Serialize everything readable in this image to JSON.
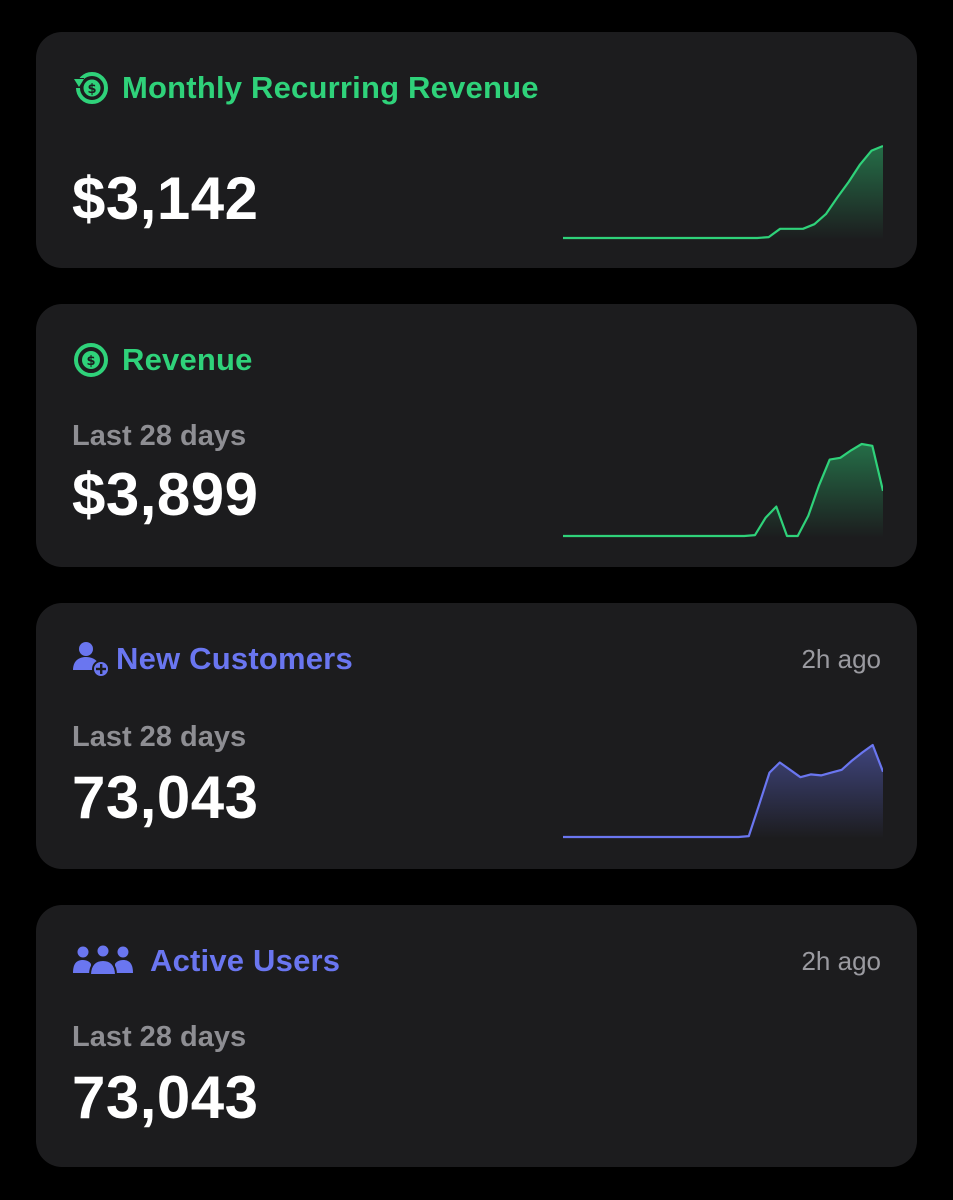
{
  "colors": {
    "background": "#000000",
    "card": "#1c1c1e",
    "green_accent": "#2fd27a",
    "blue_accent": "#6a76f0",
    "muted_text": "#8e8e93",
    "value_text": "#ffffff"
  },
  "cards": {
    "mrr": {
      "title": "Monthly Recurring Revenue",
      "icon": "recurring-dollar-icon",
      "value": "$3,142"
    },
    "revenue": {
      "title": "Revenue",
      "icon": "dollar-circle-icon",
      "period": "Last 28 days",
      "value": "$3,899"
    },
    "new_customers": {
      "title": "New Customers",
      "icon": "person-add-icon",
      "timestamp": "2h ago",
      "period": "Last 28 days",
      "value": "73,043"
    },
    "active_users": {
      "title": "Active Users",
      "icon": "users-group-icon",
      "timestamp": "2h ago",
      "period": "Last 28 days",
      "value": "73,043"
    }
  },
  "chart_data": [
    {
      "type": "area",
      "series": [
        {
          "values": [
            0,
            0,
            0,
            0,
            0,
            0,
            0,
            0,
            0,
            0,
            0,
            0,
            0,
            0,
            0,
            0,
            0,
            0,
            0.1,
            1,
            1,
            1,
            1.5,
            2.6,
            4.4,
            6.1,
            8,
            9.5,
            10
          ]
        }
      ]
    },
    {
      "type": "area",
      "series": [
        {
          "values": [
            0,
            0,
            0,
            0,
            0,
            0,
            0,
            0,
            0,
            0,
            0,
            0,
            0,
            0,
            0,
            0,
            0,
            0,
            0.1,
            2,
            3.2,
            0,
            0,
            2.2,
            5.5,
            8.3,
            8.5,
            9.3,
            10,
            9.8,
            4.9
          ]
        }
      ]
    },
    {
      "type": "area",
      "series": [
        {
          "values": [
            0,
            0,
            0,
            0,
            0,
            0,
            0,
            0,
            0,
            0,
            0,
            0,
            0,
            0,
            0,
            0,
            0,
            0,
            0.1,
            3.5,
            7,
            8.1,
            7.3,
            6.5,
            6.8,
            6.7,
            7,
            7.3,
            8.3,
            9.2,
            10,
            7.1
          ]
        }
      ]
    }
  ]
}
